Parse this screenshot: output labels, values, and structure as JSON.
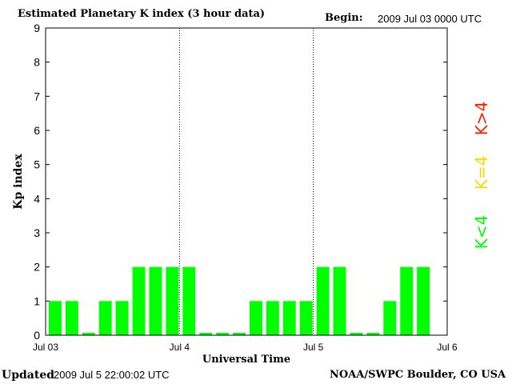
{
  "header": {
    "title": "Estimated Planetary K index (3 hour data)",
    "begin_label": "Begin:",
    "begin_value": "2009 Jul 03 0000 UTC"
  },
  "footer": {
    "updated_label": "Updated",
    "updated_value": "2009 Jul  5 22:00:02 UTC",
    "credit": "NOAA/SWPC Boulder, CO USA"
  },
  "chart_data": {
    "type": "bar",
    "title": "Estimated Planetary K index (3 hour data)",
    "xlabel": "Universal Time",
    "ylabel": "Kp index",
    "ylim": [
      0,
      9
    ],
    "yticks": [
      "0",
      "1",
      "2",
      "3",
      "4",
      "5",
      "6",
      "7",
      "8",
      "9"
    ],
    "xticks": [
      "Jul 03",
      "Jul 4",
      "Jul 5",
      "Jul 6"
    ],
    "day_separators": [
      "Jul 4",
      "Jul 5"
    ],
    "interval_hours": 3,
    "values": [
      1,
      1,
      0,
      1,
      1,
      2,
      2,
      2,
      2,
      0,
      0,
      0,
      1,
      1,
      1,
      1,
      2,
      2,
      0,
      0,
      1,
      2,
      2
    ],
    "legend": [
      {
        "label": "K<4",
        "color": "#00ff00"
      },
      {
        "label": "K=4",
        "color": "#ffd700"
      },
      {
        "label": "K>4",
        "color": "#ff2000"
      }
    ],
    "legend_placement": "right",
    "bar_color": "#00ff00"
  }
}
